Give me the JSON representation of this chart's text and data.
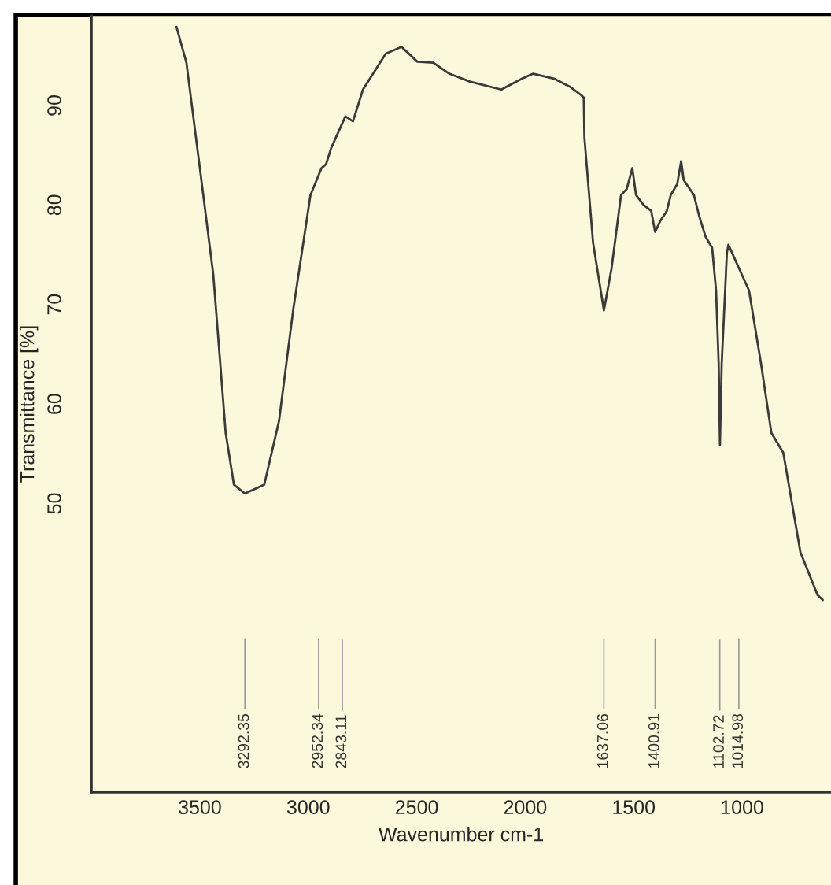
{
  "chart_data": {
    "type": "line",
    "xlabel": "Wavenumber cm-1",
    "ylabel": "Transmittance [%]",
    "xlim": [
      4000,
      590
    ],
    "ylim": [
      21,
      99
    ],
    "xticks": [
      3500,
      3000,
      2500,
      2000,
      1500,
      1000
    ],
    "yticks": [
      50,
      60,
      70,
      80,
      90
    ],
    "grid": false,
    "legend": false,
    "series": [
      {
        "color": "#3a3a3a",
        "x": [
          3608,
          3562,
          3500,
          3438,
          3381,
          3343,
          3292,
          3203,
          3135,
          3070,
          2990,
          2939,
          2918,
          2895,
          2829,
          2794,
          2748,
          2643,
          2570,
          2497,
          2424,
          2350,
          2255,
          2110,
          2014,
          1963,
          1868,
          1795,
          1745,
          1730,
          1727,
          1687,
          1637,
          1602,
          1558,
          1532,
          1506,
          1489,
          1454,
          1419,
          1401,
          1377,
          1347,
          1329,
          1299,
          1281,
          1269,
          1222,
          1198,
          1168,
          1138,
          1120,
          1108,
          1102,
          1094,
          1070,
          1063,
          968,
          913,
          865,
          810,
          731,
          652,
          628
        ],
        "values": [
          97.9,
          94.3,
          83.7,
          73,
          57.1,
          51.9,
          51,
          51.9,
          58.3,
          69.4,
          81,
          83.7,
          84.1,
          85.7,
          88.9,
          88.4,
          91.6,
          95.2,
          95.9,
          94.4,
          94.3,
          93.2,
          92.4,
          91.6,
          92.7,
          93.2,
          92.7,
          91.9,
          91.1,
          90.8,
          86.8,
          76.2,
          69.4,
          73.6,
          81,
          81.6,
          83.7,
          81,
          80,
          79.4,
          77.3,
          78.4,
          79.4,
          81,
          82.1,
          84.4,
          82.5,
          81,
          78.9,
          76.8,
          75.7,
          71.4,
          64.1,
          55.9,
          64,
          75.2,
          76,
          71.4,
          64.1,
          57.1,
          55.1,
          45.1,
          40.8,
          40.3
        ]
      }
    ],
    "ref_lines": [
      {
        "axis": "x",
        "value": 3292.35,
        "label": "3292.35",
        "color": "#999999"
      },
      {
        "axis": "x",
        "value": 2952.34,
        "label": "2952.34",
        "color": "#999999"
      },
      {
        "axis": "x",
        "value": 2843.11,
        "label": "2843.11",
        "color": "#999999"
      },
      {
        "axis": "x",
        "value": 1637.06,
        "label": "1637.06",
        "color": "#999999"
      },
      {
        "axis": "x",
        "value": 1400.91,
        "label": "1400.91",
        "color": "#999999"
      },
      {
        "axis": "x",
        "value": 1102.72,
        "label": "1102.72",
        "color": "#999999"
      },
      {
        "axis": "x",
        "value": 1014.98,
        "label": "1014.98",
        "color": "#999999"
      }
    ]
  }
}
